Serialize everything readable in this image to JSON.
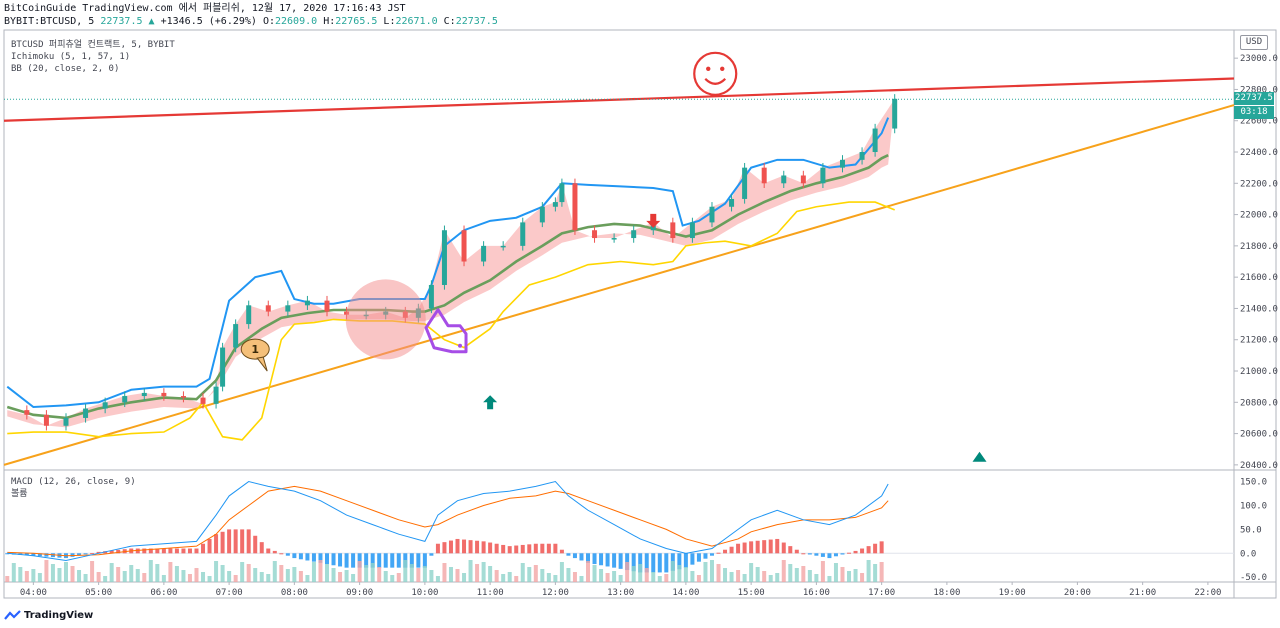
{
  "header": {
    "line1": "BitCoinGuide TradingView.com 에서 퍼블리쉬, 12월 17, 2020 17:16:43 JST",
    "symbol": "BYBIT:BTCUSD, 5",
    "last": "22737.5",
    "change_arrow": "▲",
    "change": "+1346.5 (+6.29%)",
    "o_label": "O:",
    "o": "22609.0",
    "h_label": "H:",
    "h": "22765.5",
    "l_label": "L:",
    "l": "22671.0",
    "c_label": "C:",
    "c": "22737.5"
  },
  "legend": {
    "title": "BTCUSD 퍼피츄얼 컨트랙트, 5, BYBIT",
    "ichimoku": "Ichimoku (5, 1, 57, 1)",
    "bb": "BB (20, close, 2, 0)",
    "macd": "MACD (12, 26, close, 9)",
    "volume": "볼륨"
  },
  "axis": {
    "currency": "USD",
    "price_tag": "22737.5",
    "countdown": "03:18"
  },
  "footer": {
    "brand": "TradingView"
  },
  "colors": {
    "up": "#26a69a",
    "down": "#ef5350",
    "bb_upper": "#2196f3",
    "bb_basis": "#4caf50",
    "bb_lower": "#ffd600",
    "cloud": "#f8a5a5",
    "resistance": "#e53935",
    "support": "#f7a21b",
    "macd": "#2196f3",
    "signal": "#ff6d00",
    "annotation": "#a64de6"
  },
  "chart_data": [
    {
      "type": "line",
      "pane": "price",
      "title": "BTCUSD 퍼피츄얼 컨트랙트, 5, BYBIT",
      "x_ticks": [
        "04:00",
        "05:00",
        "06:00",
        "07:00",
        "08:00",
        "09:00",
        "10:00",
        "11:00",
        "12:00",
        "13:00",
        "14:00",
        "15:00",
        "16:00",
        "17:00",
        "18:00",
        "19:00",
        "20:00",
        "21:00",
        "22:00"
      ],
      "y_ticks": [
        20400,
        20600,
        20800,
        21000,
        21200,
        21400,
        21600,
        21800,
        22000,
        22200,
        22400,
        22600,
        22800,
        23000
      ],
      "ylim": [
        20380,
        23180
      ],
      "xlim_hours": [
        3.55,
        22.4
      ],
      "series": [
        {
          "key": "close",
          "x": [
            3.6,
            3.9,
            4.2,
            4.5,
            4.8,
            5.1,
            5.4,
            5.7,
            6.0,
            6.3,
            6.6,
            6.8,
            6.9,
            7.1,
            7.3,
            7.6,
            7.9,
            8.2,
            8.5,
            8.8,
            9.1,
            9.4,
            9.7,
            9.9,
            10.1,
            10.3,
            10.6,
            10.9,
            11.2,
            11.5,
            11.8,
            12.0,
            12.1,
            12.3,
            12.6,
            12.9,
            13.2,
            13.5,
            13.8,
            14.1,
            14.4,
            14.7,
            14.9,
            15.2,
            15.5,
            15.8,
            16.1,
            16.4,
            16.7,
            16.9,
            17.2
          ],
          "y": [
            20750,
            20720,
            20650,
            20700,
            20760,
            20800,
            20840,
            20860,
            20840,
            20830,
            20790,
            20900,
            21150,
            21300,
            21420,
            21380,
            21420,
            21450,
            21380,
            21360,
            21360,
            21380,
            21340,
            21400,
            21550,
            21900,
            21700,
            21800,
            21800,
            21950,
            22050,
            22080,
            22200,
            21900,
            21850,
            21850,
            21900,
            21950,
            21850,
            21950,
            22050,
            22100,
            22300,
            22200,
            22250,
            22200,
            22300,
            22350,
            22400,
            22550,
            22740
          ]
        },
        {
          "key": "bb_upper",
          "x": [
            3.6,
            4.0,
            4.5,
            5.0,
            5.5,
            6.0,
            6.5,
            6.7,
            7.0,
            7.4,
            7.8,
            8.0,
            8.3,
            8.6,
            9.0,
            9.5,
            10.0,
            10.1,
            10.3,
            10.6,
            11.0,
            11.4,
            11.8,
            12.1,
            12.5,
            13.0,
            13.5,
            13.8,
            13.95,
            14.2,
            14.6,
            15.0,
            15.4,
            15.8,
            16.2,
            16.6,
            17.0,
            17.1
          ],
          "y": [
            20900,
            20770,
            20780,
            20800,
            20880,
            20900,
            20900,
            20950,
            21450,
            21600,
            21640,
            21460,
            21430,
            21430,
            21460,
            21460,
            21460,
            21550,
            21800,
            21900,
            21960,
            21980,
            22050,
            22200,
            22190,
            22180,
            22170,
            22150,
            21930,
            21960,
            22070,
            22300,
            22350,
            22350,
            22300,
            22320,
            22520,
            22620
          ]
        },
        {
          "key": "bb_basis",
          "x": [
            3.6,
            4.0,
            4.5,
            5.0,
            5.5,
            6.0,
            6.5,
            6.8,
            7.1,
            7.5,
            7.8,
            8.2,
            8.6,
            9.0,
            9.4,
            9.8,
            10.0,
            10.3,
            10.6,
            11.0,
            11.4,
            11.8,
            12.1,
            12.5,
            12.9,
            13.3,
            13.7,
            14.0,
            14.4,
            14.8,
            15.2,
            15.6,
            16.0,
            16.4,
            16.8,
            17.0,
            17.1
          ],
          "y": [
            20770,
            20720,
            20700,
            20760,
            20800,
            20830,
            20820,
            20940,
            21150,
            21270,
            21340,
            21370,
            21390,
            21390,
            21390,
            21380,
            21380,
            21420,
            21500,
            21580,
            21700,
            21800,
            21880,
            21920,
            21940,
            21930,
            21890,
            21860,
            21900,
            22000,
            22080,
            22150,
            22200,
            22240,
            22300,
            22360,
            22380
          ]
        },
        {
          "key": "bb_lower",
          "x": [
            3.6,
            4.0,
            4.5,
            5.0,
            5.5,
            6.0,
            6.4,
            6.6,
            6.9,
            7.2,
            7.5,
            7.8,
            8.0,
            8.3,
            8.6,
            9.0,
            9.5,
            10.0,
            10.3,
            10.6,
            11.0,
            11.2,
            11.6,
            12.0,
            12.5,
            13.0,
            13.5,
            13.8,
            14.0,
            14.3,
            14.6,
            15.0,
            15.4,
            15.7,
            16.0,
            16.5,
            16.9,
            17.2
          ],
          "y": [
            20600,
            20610,
            20610,
            20580,
            20600,
            20610,
            20700,
            20800,
            20580,
            20560,
            20700,
            21200,
            21300,
            21310,
            21330,
            21320,
            21320,
            21300,
            21200,
            21150,
            21270,
            21380,
            21550,
            21600,
            21680,
            21700,
            21680,
            21700,
            21800,
            21820,
            21830,
            21800,
            21880,
            22020,
            22050,
            22080,
            22080,
            22030
          ]
        }
      ],
      "trendlines": [
        {
          "name": "resistance",
          "x": [
            3.55,
            22.4
          ],
          "y": [
            22600,
            22870
          ]
        },
        {
          "name": "support",
          "x": [
            3.55,
            22.4
          ],
          "y": [
            20400,
            22700
          ]
        }
      ],
      "annotations": [
        {
          "type": "smiley",
          "x": 14.45,
          "y": 22900
        },
        {
          "type": "circle",
          "x": 9.4,
          "y": 21330
        },
        {
          "type": "pointing-hand",
          "x": 10.6,
          "y": 21200
        },
        {
          "type": "badge",
          "text": "1",
          "x": 7.4,
          "y": 21140
        },
        {
          "type": "arrow-up",
          "x": 11.0,
          "y": 20800
        },
        {
          "type": "arrow-down",
          "x": 13.5,
          "y": 21960
        },
        {
          "type": "triangle-up",
          "x": 18.5,
          "y": 20420
        }
      ]
    },
    {
      "type": "line",
      "pane": "macd",
      "title": "MACD (12, 26, close, 9)",
      "y_ticks": [
        -50.0,
        0.0,
        50.0,
        100.0,
        150.0
      ],
      "ylim": [
        -60,
        170
      ],
      "x": [
        3.6,
        4.0,
        4.5,
        5.0,
        5.5,
        6.0,
        6.5,
        6.8,
        7.0,
        7.3,
        7.6,
        8.0,
        8.4,
        8.8,
        9.2,
        9.6,
        10.0,
        10.2,
        10.5,
        10.9,
        11.3,
        11.7,
        12.0,
        12.2,
        12.5,
        12.9,
        13.3,
        13.7,
        14.0,
        14.4,
        14.8,
        15.0,
        15.4,
        15.8,
        16.2,
        16.6,
        17.0,
        17.1
      ],
      "series": [
        {
          "key": "macd",
          "values": [
            0,
            -5,
            -15,
            0,
            15,
            20,
            25,
            80,
            120,
            150,
            140,
            130,
            110,
            80,
            60,
            40,
            25,
            80,
            110,
            125,
            130,
            140,
            150,
            120,
            90,
            60,
            30,
            10,
            0,
            10,
            50,
            70,
            90,
            70,
            60,
            80,
            120,
            145
          ]
        },
        {
          "key": "signal",
          "values": [
            2,
            0,
            -5,
            -3,
            5,
            10,
            15,
            40,
            70,
            100,
            130,
            140,
            130,
            110,
            90,
            70,
            55,
            60,
            80,
            100,
            115,
            120,
            130,
            125,
            110,
            90,
            70,
            50,
            30,
            15,
            30,
            45,
            60,
            70,
            70,
            75,
            95,
            110
          ]
        },
        {
          "key": "hist",
          "values": [
            -2,
            -5,
            -10,
            3,
            10,
            10,
            10,
            40,
            50,
            50,
            10,
            -10,
            -20,
            -30,
            -30,
            -30,
            -30,
            20,
            30,
            25,
            15,
            20,
            20,
            -5,
            -20,
            -30,
            -40,
            -40,
            -30,
            -5,
            20,
            25,
            30,
            0,
            -10,
            5,
            25,
            35
          ]
        }
      ]
    }
  ]
}
